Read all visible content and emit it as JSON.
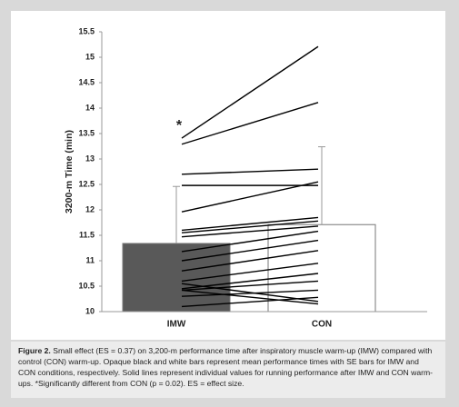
{
  "chart_data": {
    "type": "bar-with-individuals",
    "y_label": "3200-m Time (min)",
    "categories": [
      "IMW",
      "CON"
    ],
    "values": [
      11.34,
      11.71
    ],
    "errors": [
      1.12,
      1.53
    ],
    "colors": [
      "#595959",
      "#ffffff"
    ],
    "line_color": "#000000",
    "individual": [
      [
        13.41,
        15.21
      ],
      [
        13.29,
        14.11
      ],
      [
        12.7,
        12.8
      ],
      [
        12.48,
        12.48
      ],
      [
        11.96,
        12.55
      ],
      [
        11.6,
        11.85
      ],
      [
        11.55,
        11.78
      ],
      [
        11.47,
        11.68
      ],
      [
        11.18,
        11.58
      ],
      [
        11.0,
        11.4
      ],
      [
        10.8,
        11.2
      ],
      [
        10.6,
        10.95
      ],
      [
        10.45,
        10.75
      ],
      [
        10.42,
        10.6
      ],
      [
        10.55,
        10.2
      ],
      [
        10.3,
        10.42
      ],
      [
        10.1,
        10.28
      ],
      [
        10.42,
        10.15
      ]
    ],
    "annotation": {
      "text": "*",
      "y": 13.65
    },
    "ylim": [
      10,
      15.5
    ],
    "yticks": [
      10,
      10.5,
      11,
      11.5,
      12,
      12.5,
      13,
      13.5,
      14,
      14.5,
      15,
      15.5
    ]
  },
  "caption": {
    "label": "Figure 2.",
    "text": "Small effect (ES = 0.37) on 3,200-m performance time after inspiratory muscle warm-up (IMW) compared with control (CON) warm-up. Opaque black and white bars represent mean performance times with SE bars for IMW and CON conditions, respectively. Solid lines represent individual values for running performance after IMW and CON warm-ups. *Significantly different from CON (p = 0.02). ES = effect size."
  }
}
